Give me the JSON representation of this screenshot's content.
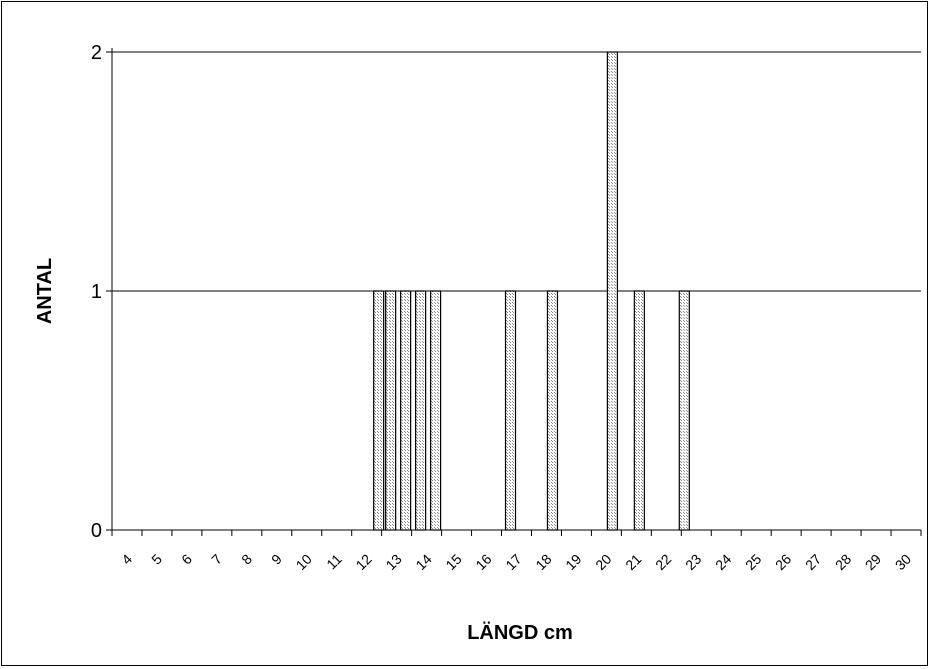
{
  "chart_data": {
    "type": "bar",
    "title": "",
    "xlabel": "LÄNGD cm",
    "ylabel": "ANTAL",
    "ylim": [
      0,
      2
    ],
    "y_ticks": [
      "0",
      "1",
      "2"
    ],
    "grid": true,
    "x_range": [
      4,
      30
    ],
    "x_tick_labels": [
      "4",
      "5",
      "6",
      "7",
      "8",
      "9",
      "10",
      "11",
      "12",
      "13",
      "14",
      "15",
      "16",
      "17",
      "18",
      "19",
      "20",
      "21",
      "22",
      "23",
      "24",
      "25",
      "26",
      "27",
      "28",
      "29",
      "30"
    ],
    "bars": [
      {
        "x": 12.4,
        "value": 1
      },
      {
        "x": 12.8,
        "value": 1
      },
      {
        "x": 13.3,
        "value": 1
      },
      {
        "x": 13.8,
        "value": 1
      },
      {
        "x": 14.3,
        "value": 1
      },
      {
        "x": 16.8,
        "value": 1
      },
      {
        "x": 18.2,
        "value": 1
      },
      {
        "x": 20.2,
        "value": 2
      },
      {
        "x": 21.1,
        "value": 1
      },
      {
        "x": 22.6,
        "value": 1
      }
    ],
    "bar_color": "#c8c8c8"
  }
}
